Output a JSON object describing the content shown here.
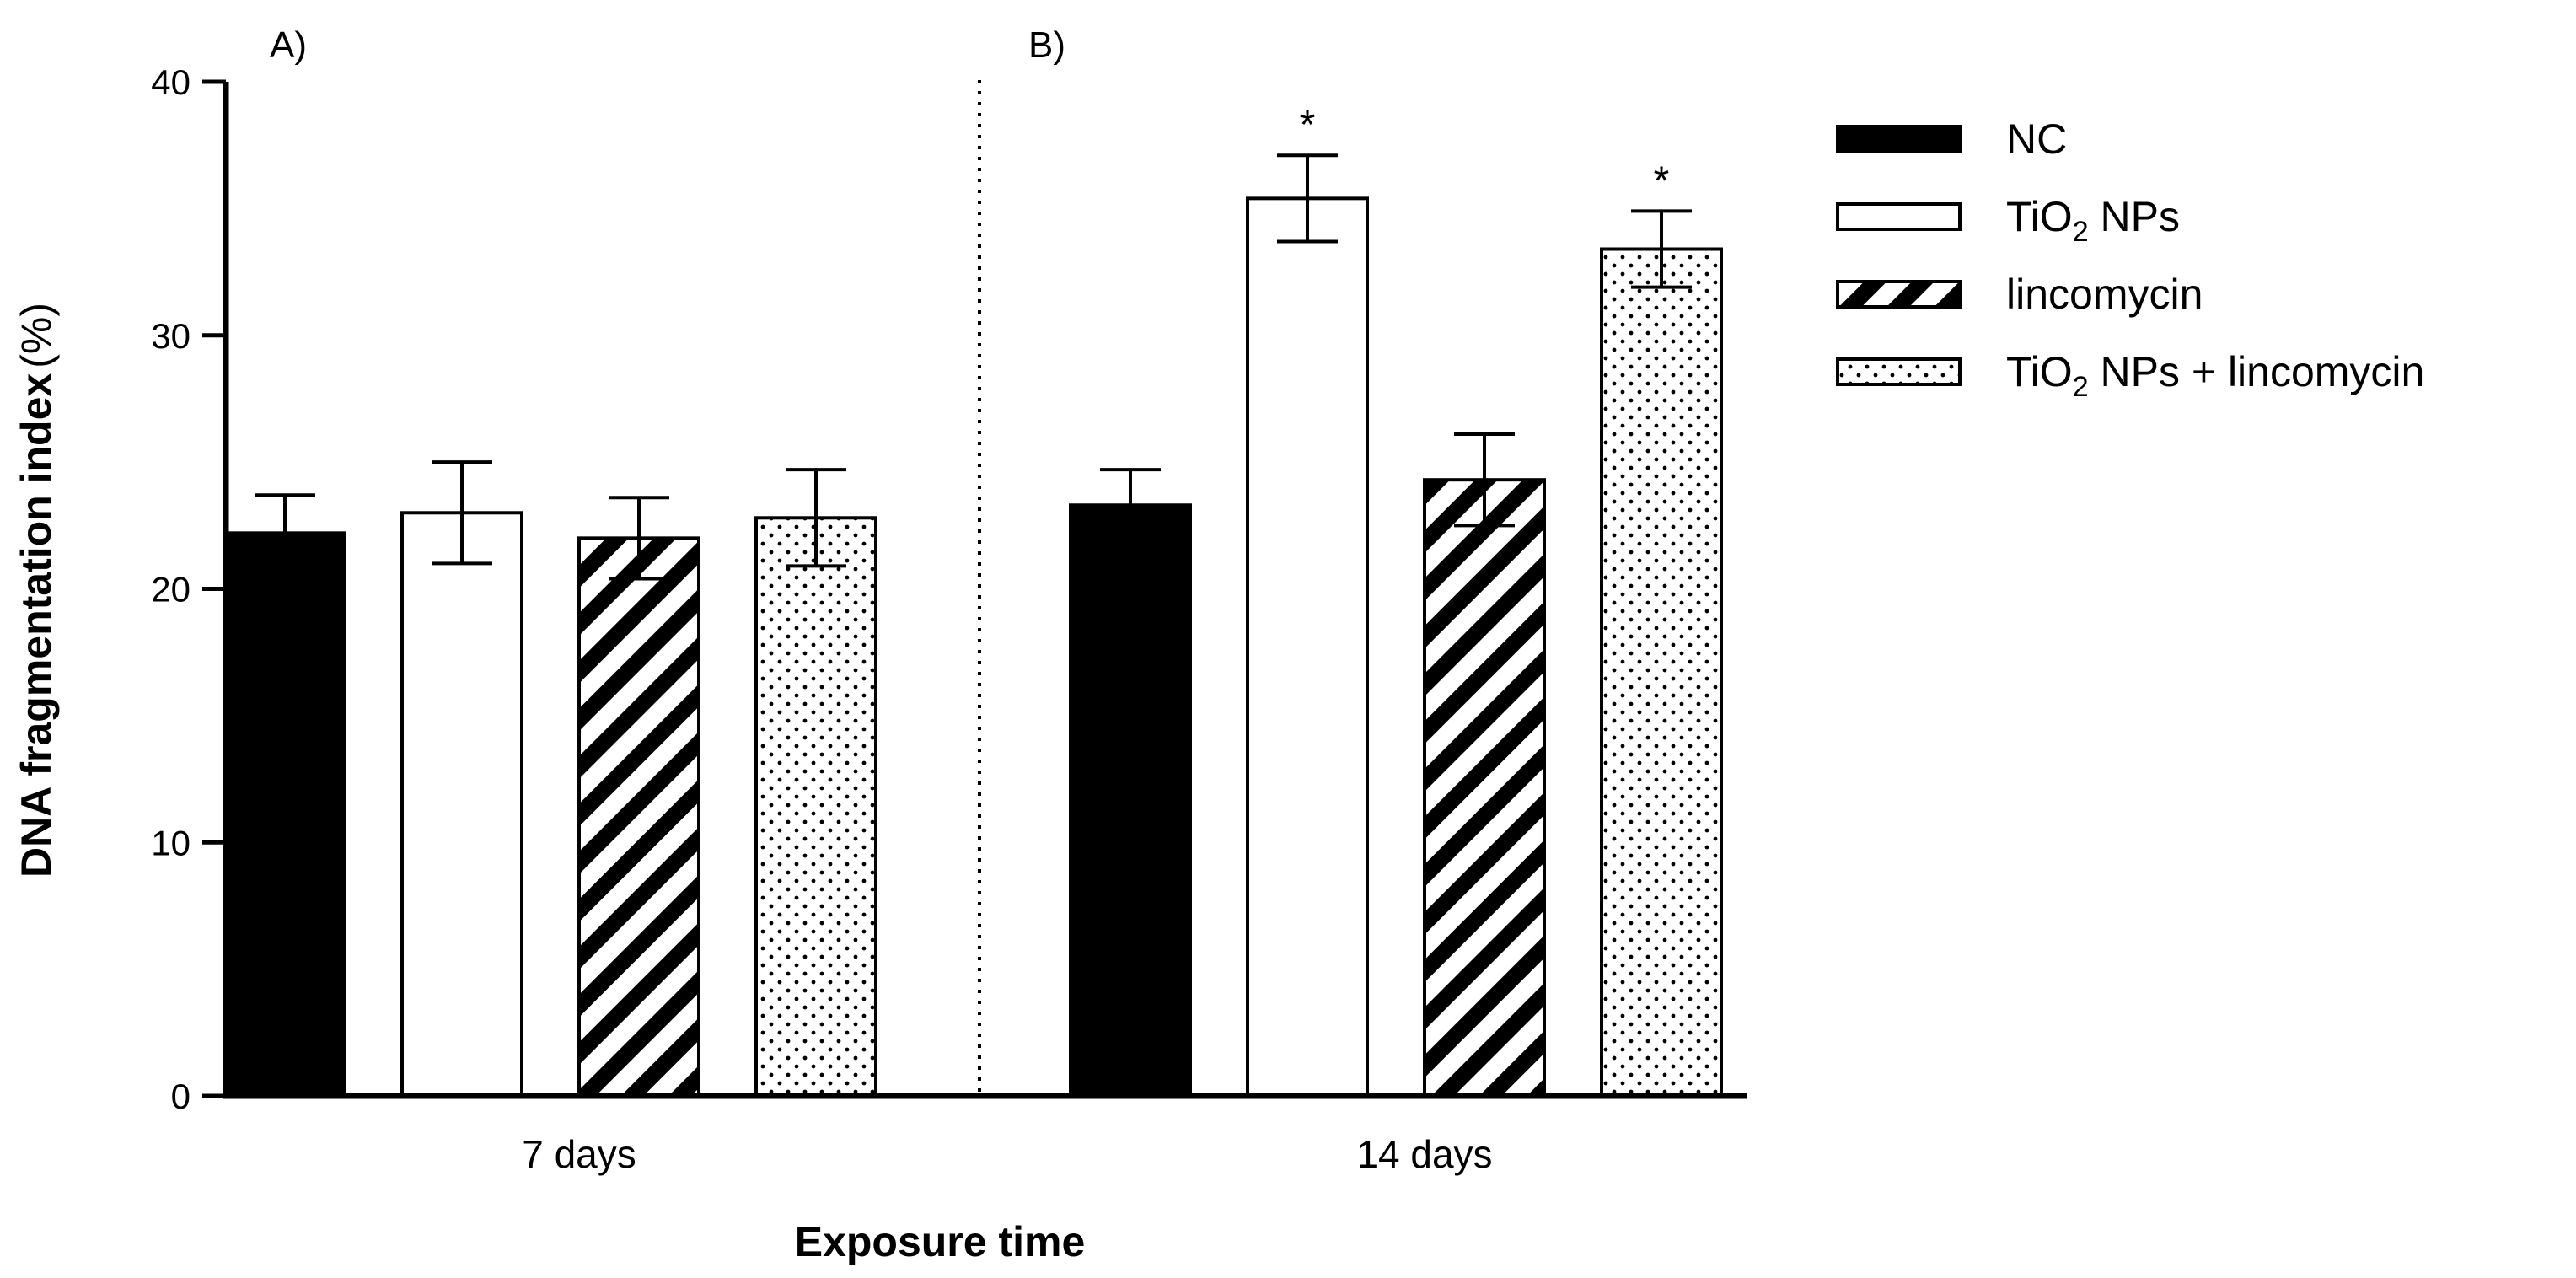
{
  "chart_data": {
    "type": "bar",
    "categories": [
      "7 days",
      "14 days"
    ],
    "xlabel": "Exposure time",
    "ylabel_bold": "DNA fragmentation index",
    "ylabel_unit": "(%)",
    "ylim": [
      0,
      40
    ],
    "yticks": [
      0,
      10,
      20,
      30,
      40
    ],
    "panel_labels": [
      "A)",
      "B)"
    ],
    "legend_position": "right",
    "series": [
      {
        "name": "NC",
        "pattern": "solid",
        "values": [
          22.2,
          23.3
        ],
        "errors": [
          1.5,
          1.4
        ],
        "significance": [
          "",
          ""
        ]
      },
      {
        "name": "TiO2 NPs",
        "name_parts": [
          "TiO",
          "2",
          " NPs"
        ],
        "pattern": "open",
        "values": [
          23.0,
          35.4
        ],
        "errors": [
          2.0,
          1.7
        ],
        "significance": [
          "",
          "*"
        ]
      },
      {
        "name": "lincomycin",
        "pattern": "diagonal",
        "values": [
          22.0,
          24.3
        ],
        "errors": [
          1.6,
          1.8
        ],
        "significance": [
          "",
          ""
        ]
      },
      {
        "name": "TiO2 NPs + lincomycin",
        "name_parts": [
          "TiO",
          "2",
          " NPs + lincomycin"
        ],
        "pattern": "dotted",
        "values": [
          22.8,
          33.4
        ],
        "errors": [
          1.9,
          1.5
        ],
        "significance": [
          "",
          "*"
        ]
      }
    ]
  }
}
